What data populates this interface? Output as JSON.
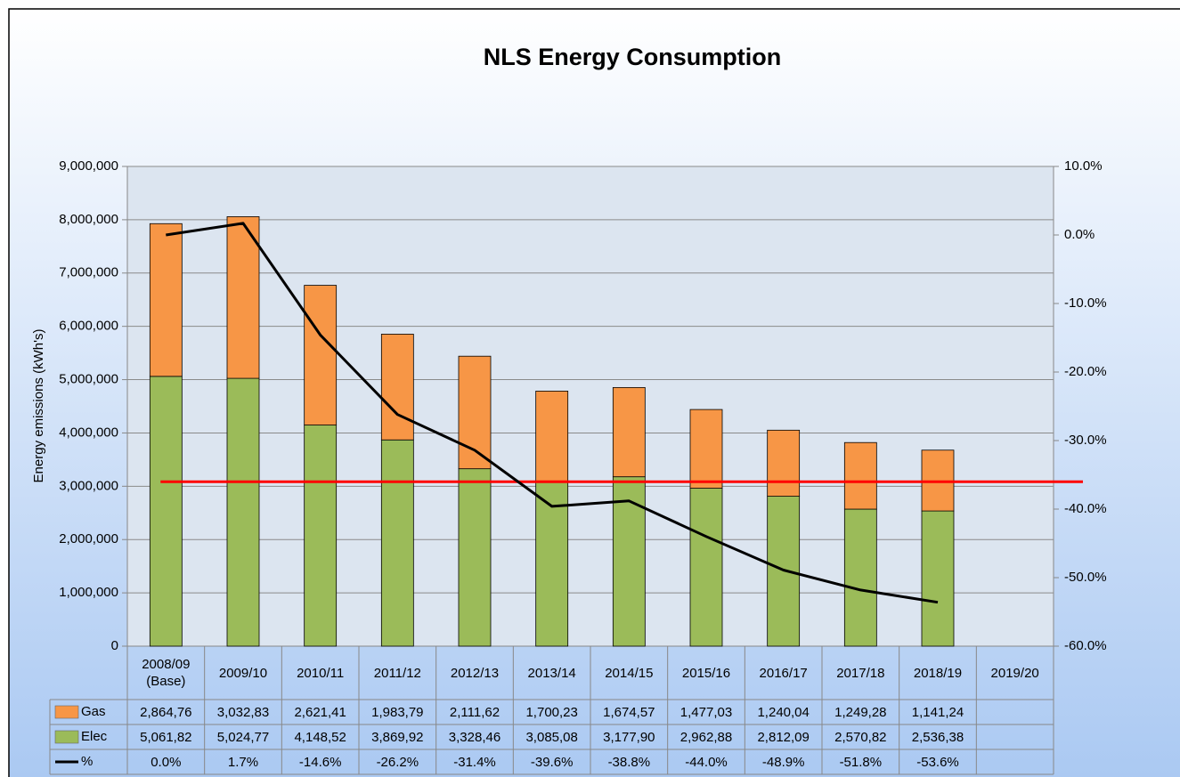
{
  "chart_data": {
    "type": "bar",
    "title": "NLS Energy Consumption",
    "y_label": "Energy emissions (kWh's)",
    "categories": [
      "2008/09\n(Base)",
      "2009/10",
      "2010/11",
      "2011/12",
      "2012/13",
      "2013/14",
      "2014/15",
      "2015/16",
      "2016/17",
      "2017/18",
      "2018/19",
      "2019/20"
    ],
    "series": [
      {
        "name": "Gas",
        "color": "#f79646",
        "stack": true,
        "values": [
          2864760,
          3032830,
          2621410,
          1983790,
          2111620,
          1700230,
          1674570,
          1477030,
          1240040,
          1249280,
          1141240,
          null
        ],
        "value_labels": [
          "2,864,76",
          "3,032,83",
          "2,621,41",
          "1,983,79",
          "2,111,62",
          "1,700,23",
          "1,674,57",
          "1,477,03",
          "1,240,04",
          "1,249,28",
          "1,141,24",
          null
        ]
      },
      {
        "name": "Elec",
        "color": "#9bbb59",
        "stack": true,
        "values": [
          5061820,
          5024770,
          4148520,
          3869920,
          3328460,
          3085080,
          3177900,
          2962880,
          2812090,
          2570820,
          2536380,
          null
        ],
        "value_labels": [
          "5,061,82",
          "5,024,77",
          "4,148,52",
          "3,869,92",
          "3,328,46",
          "3,085,08",
          "3,177,90",
          "2,962,88",
          "2,812,09",
          "2,570,82",
          "2,536,38",
          null
        ]
      },
      {
        "name": "%",
        "color": "#000000",
        "type": "line",
        "axis": "y2",
        "values": [
          0.0,
          1.7,
          -14.6,
          -26.2,
          -31.4,
          -39.6,
          -38.8,
          -44.0,
          -48.9,
          -51.8,
          -53.6,
          null
        ],
        "value_labels": [
          "0.0%",
          "1.7%",
          "-14.6%",
          "-26.2%",
          "-31.4%",
          "-39.6%",
          "-38.8%",
          "-44.0%",
          "-48.9%",
          "-51.8%",
          "-53.6%",
          null
        ]
      }
    ],
    "reference_line": {
      "value": -36,
      "axis": "y2",
      "color": "#ff0000"
    },
    "ylim": [
      0,
      9000000
    ],
    "yticks": [
      0,
      {
        "value": 1000000,
        "label": "1,000,000"
      },
      {
        "value": 2000000,
        "label": "2,000,000"
      },
      {
        "value": 3000000,
        "label": "3,000,000"
      },
      {
        "value": 4000000,
        "label": "4,000,000"
      },
      {
        "value": 5000000,
        "label": "5,000,000"
      },
      {
        "value": 6000000,
        "label": "6,000,000"
      },
      {
        "value": 7000000,
        "label": "7,000,000"
      },
      {
        "value": 8000000,
        "label": "8,000,000"
      },
      {
        "value": 9000000,
        "label": "9,000,000"
      }
    ],
    "y2lim": [
      -60,
      10
    ],
    "y2ticks": [
      {
        "value": -60,
        "label": "-60.0%"
      },
      {
        "value": -50,
        "label": "-50.0%"
      },
      {
        "value": -40,
        "label": "-40.0%"
      },
      {
        "value": -30,
        "label": "-30.0%"
      },
      {
        "value": -20,
        "label": "-20.0%"
      },
      {
        "value": -10,
        "label": "-10.0%"
      },
      {
        "value": 0,
        "label": "0.0%"
      },
      {
        "value": 10,
        "label": "10.0%"
      }
    ],
    "grid": true,
    "data_table": true
  }
}
